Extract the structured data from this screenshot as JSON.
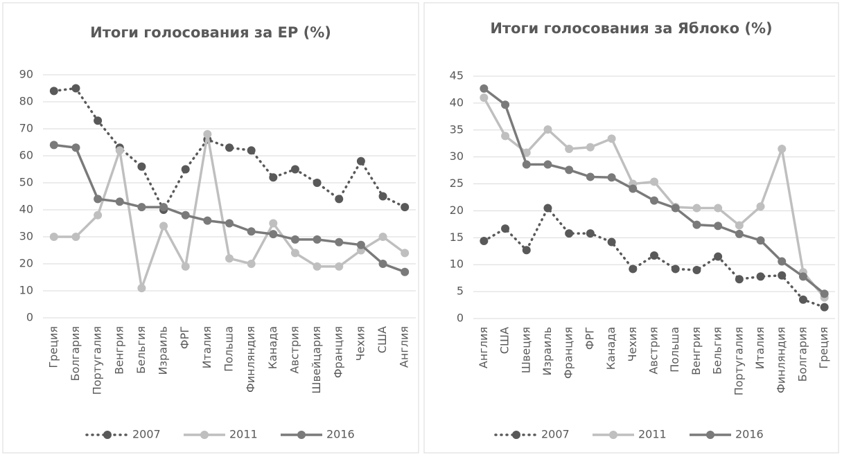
{
  "chart_data": [
    {
      "type": "line",
      "title": "Итоги голосования за ЕР (%)",
      "categories": [
        "Греция",
        "Болгария",
        "Португалия",
        "Венгрия",
        "Бельгия",
        "Израиль",
        "ФРГ",
        "Италия",
        "Польша",
        "Финляндия",
        "Канада",
        "Австрия",
        "Швейцария",
        "Франция",
        "Чехия",
        "США",
        "Англия"
      ],
      "series": [
        {
          "name": "2007",
          "color": "#595959",
          "line_style": "dotted",
          "values": [
            84,
            85,
            73,
            63,
            56,
            40,
            55,
            66,
            63,
            62,
            52,
            55,
            50,
            44,
            58,
            45,
            41
          ]
        },
        {
          "name": "2011",
          "color": "#bfbfbf",
          "line_style": "solid",
          "values": [
            30,
            30,
            38,
            62,
            11,
            34,
            19,
            68,
            22,
            20,
            35,
            24,
            19,
            19,
            25,
            30,
            24
          ]
        },
        {
          "name": "2016",
          "color": "#7a7a7a",
          "line_style": "solid",
          "values": [
            64,
            63,
            44,
            43,
            41,
            41,
            38,
            36,
            35,
            32,
            31,
            29,
            29,
            28,
            27,
            20,
            17
          ]
        }
      ],
      "ylim": [
        0,
        90
      ],
      "yticks": [
        0,
        10,
        20,
        30,
        40,
        50,
        60,
        70,
        80,
        90
      ],
      "legend": "bottom"
    },
    {
      "type": "line",
      "title": "Итоги голосования за  Яблоко (%)",
      "categories": [
        "Англия",
        "США",
        "Швеция",
        "Израиль",
        "Франция",
        "ФРГ",
        "Канада",
        "Чехия",
        "Австрия",
        "Польша",
        "Венгрия",
        "Бельгия",
        "Португалия",
        "Италия",
        "Финляндия",
        "Болгария",
        "Греция"
      ],
      "series": [
        {
          "name": "2007",
          "color": "#595959",
          "line_style": "dotted",
          "values": [
            14.4,
            16.7,
            12.7,
            20.5,
            15.8,
            15.8,
            14.2,
            9.2,
            11.7,
            9.2,
            9.0,
            11.5,
            7.3,
            7.8,
            8.0,
            3.5,
            2.1
          ]
        },
        {
          "name": "2011",
          "color": "#bfbfbf",
          "line_style": "solid",
          "values": [
            41,
            33.9,
            30.8,
            35.1,
            31.5,
            31.8,
            33.4,
            25,
            25.4,
            20.7,
            20.5,
            20.5,
            17.3,
            20.8,
            31.5,
            8.6,
            3.9
          ]
        },
        {
          "name": "2016",
          "color": "#7a7a7a",
          "line_style": "solid",
          "values": [
            42.7,
            39.7,
            28.6,
            28.6,
            27.6,
            26.3,
            26.2,
            24.1,
            21.9,
            20.5,
            17.4,
            17.2,
            15.7,
            14.5,
            10.6,
            7.8,
            4.6
          ]
        }
      ],
      "ylim": [
        0,
        45
      ],
      "yticks": [
        0,
        5,
        10,
        15,
        20,
        25,
        30,
        35,
        40,
        45
      ],
      "legend": "bottom"
    }
  ]
}
